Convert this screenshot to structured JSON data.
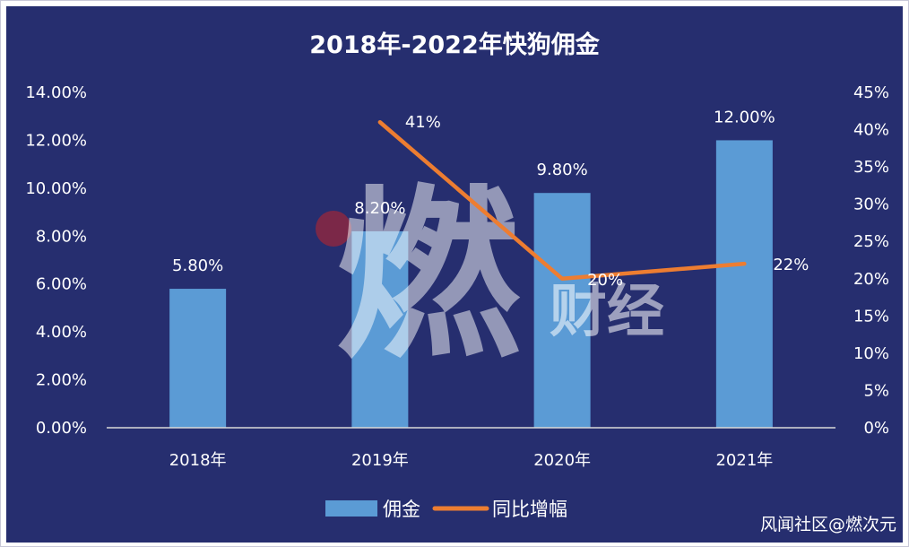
{
  "chart_data": {
    "type": "bar",
    "title": "2018年-2022年快狗佣金",
    "categories": [
      "2018年",
      "2019年",
      "2020年",
      "2021年"
    ],
    "series": [
      {
        "name": "佣金",
        "type": "bar",
        "axis": "left",
        "color": "#5b9bd5",
        "values": [
          5.8,
          8.2,
          9.8,
          12.0
        ],
        "data_labels": [
          "5.80%",
          "8.20%",
          "9.80%",
          "12.00%"
        ]
      },
      {
        "name": "同比增幅",
        "type": "line",
        "axis": "right",
        "color": "#ed7d31",
        "values": [
          null,
          41,
          20,
          22
        ],
        "data_labels": [
          "",
          "41%",
          "20%",
          "22%"
        ]
      }
    ],
    "y_left": {
      "range": [
        0,
        14
      ],
      "ticks": [
        0,
        2,
        4,
        6,
        8,
        10,
        12,
        14
      ],
      "tick_labels": [
        "0.00%",
        "2.00%",
        "4.00%",
        "6.00%",
        "8.00%",
        "10.00%",
        "12.00%",
        "14.00%"
      ]
    },
    "y_right": {
      "range": [
        0,
        45
      ],
      "ticks": [
        0,
        5,
        10,
        15,
        20,
        25,
        30,
        35,
        40,
        45
      ],
      "tick_labels": [
        "0%",
        "5%",
        "10%",
        "15%",
        "20%",
        "25%",
        "30%",
        "35%",
        "40%",
        "45%"
      ]
    },
    "grid": false,
    "legend": "bottom-center"
  },
  "watermark": {
    "big": "燃",
    "small": "财经"
  },
  "credit": "风闻社区@燃次元",
  "colors": {
    "background": "#262e6f",
    "axis": "#d9d9d9",
    "text": "#ffffff",
    "watermark_dot": "#8b2742"
  }
}
